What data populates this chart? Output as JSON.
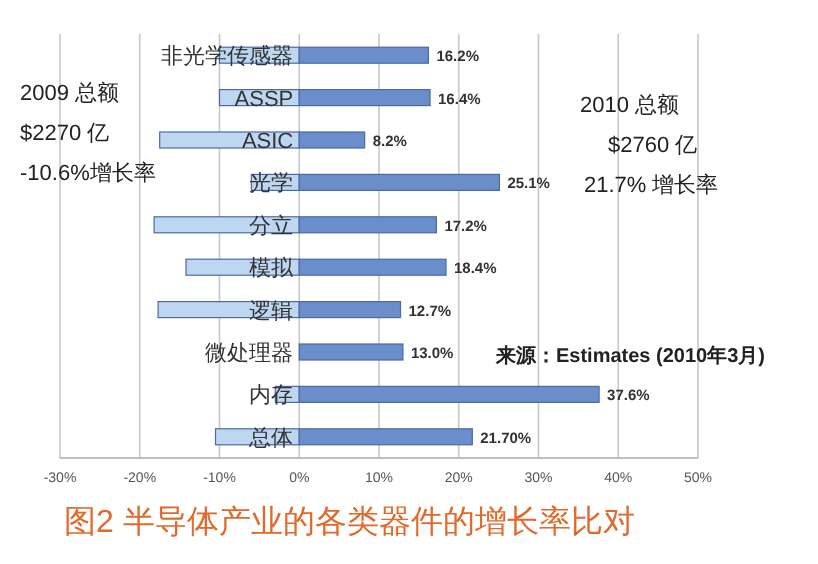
{
  "chart_data": {
    "type": "bar",
    "orientation": "horizontal",
    "stacked": true,
    "title": "图2 半导体产业的各类器件的增长率比对",
    "categories": [
      "非光学传感器",
      "ASSP",
      "ASIC",
      "光学",
      "分立",
      "模拟",
      "逻辑",
      "微处理器",
      "内存",
      "总体"
    ],
    "series": [
      {
        "color": "#bdd7f0",
        "values": [
          -10,
          -10,
          -17.5,
          -6,
          -18.2,
          -14.2,
          -17.7,
          null,
          -3,
          -10.5
        ]
      },
      {
        "color": "#6a8dcb",
        "values": [
          16.2,
          16.4,
          8.2,
          25.1,
          17.2,
          18.4,
          12.7,
          13.0,
          37.6,
          21.7
        ],
        "value_labels": [
          "16.2%",
          "16.4%",
          "8.2%",
          "25.1%",
          "17.2%",
          "18.4%",
          "12.7%",
          "13.0%",
          "37.6%",
          "21.70%"
        ]
      }
    ],
    "xlim": [
      -30,
      50
    ],
    "xticks": [
      {
        "value": -30,
        "label": "-30%"
      },
      {
        "value": -20,
        "label": "-20%"
      },
      {
        "value": -10,
        "label": "-10%"
      },
      {
        "value": 0,
        "label": "0%"
      },
      {
        "value": 10,
        "label": "10%"
      },
      {
        "value": 20,
        "label": "20%"
      },
      {
        "value": 30,
        "label": "30%"
      },
      {
        "value": 40,
        "label": "40%"
      },
      {
        "value": 50,
        "label": "50%"
      }
    ],
    "grid": "x",
    "annotations": [
      "2009 总额",
      "$2270 亿",
      "-10.6%增长率",
      "2010 总额",
      "$2760 亿",
      "21.7% 增长率",
      "来源：Estimates (2010年3月)"
    ]
  }
}
